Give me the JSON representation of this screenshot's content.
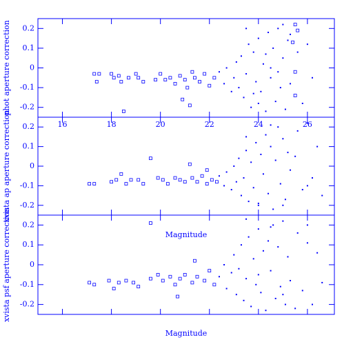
{
  "chart_data": [
    {
      "type": "scatter",
      "ylabel": "phot aperture correction",
      "xlim": [
        15,
        27.1
      ],
      "ylim": [
        -0.25,
        0.25
      ],
      "xticks": [
        16,
        18,
        20,
        22,
        24,
        26
      ],
      "yticks": [
        -0.2,
        -0.1,
        0,
        0.1,
        0.2
      ],
      "series": [
        {
          "color": "#0000ff",
          "marker": "open",
          "x": [
            17.3,
            17.5,
            17.4,
            18.0,
            18.1,
            18.3,
            18.4,
            18.7,
            18.5,
            19.1,
            19.3,
            19.0,
            19.8,
            20.0,
            20.2,
            20.4,
            20.6,
            20.8,
            21.0,
            21.1,
            21.2,
            21.4,
            21.6,
            21.8,
            22.0,
            22.2,
            20.9,
            21.3,
            25.5,
            25.6,
            25.4,
            25.5,
            25.5
          ],
          "y": [
            -0.03,
            -0.03,
            -0.07,
            -0.03,
            -0.05,
            -0.04,
            -0.07,
            -0.05,
            -0.22,
            -0.05,
            -0.07,
            -0.03,
            -0.06,
            -0.03,
            -0.06,
            -0.05,
            -0.08,
            -0.04,
            -0.06,
            -0.1,
            -0.19,
            -0.05,
            -0.07,
            -0.03,
            -0.09,
            -0.05,
            -0.16,
            -0.02,
            0.22,
            0.19,
            0.13,
            -0.02,
            -0.14
          ]
        },
        {
          "color": "#0000ff",
          "marker": "dot",
          "x": [
            22.4,
            22.6,
            22.7,
            22.9,
            23.0,
            23.1,
            23.2,
            23.3,
            23.4,
            23.5,
            23.6,
            23.7,
            23.8,
            23.9,
            24.0,
            24.1,
            24.2,
            24.3,
            24.4,
            24.5,
            24.6,
            24.7,
            24.8,
            24.9,
            25.0,
            25.1,
            25.2,
            25.3,
            25.6,
            25.8,
            26.0,
            26.2,
            23.5,
            24.0,
            24.5,
            25.0,
            23.8,
            24.3,
            24.8,
            25.3
          ],
          "y": [
            -0.02,
            -0.08,
            0.0,
            -0.12,
            -0.05,
            0.03,
            -0.1,
            0.06,
            -0.15,
            -0.03,
            0.12,
            -0.2,
            0.08,
            -0.07,
            0.15,
            -0.12,
            0.02,
            -0.22,
            0.18,
            -0.05,
            0.1,
            -0.17,
            0.2,
            -0.1,
            0.05,
            -0.21,
            0.14,
            -0.08,
            0.08,
            -0.18,
            0.12,
            -0.05,
            0.2,
            -0.18,
            0.0,
            0.22,
            -0.13,
            0.07,
            -0.02,
            0.17
          ]
        }
      ]
    },
    {
      "type": "scatter",
      "ylabel": "xvista ap aperture correction",
      "xlabel": "Magnitude",
      "xlim": [
        15,
        27.1
      ],
      "ylim": [
        -0.25,
        0.25
      ],
      "yticks": [
        -0.2,
        -0.1,
        0,
        0.1,
        0.2
      ],
      "series": [
        {
          "color": "#0000ff",
          "marker": "open",
          "x": [
            17.1,
            17.3,
            18.0,
            18.2,
            18.4,
            18.6,
            18.8,
            19.1,
            19.3,
            19.6,
            19.9,
            20.1,
            20.3,
            20.6,
            20.8,
            21.0,
            21.3,
            21.5,
            21.7,
            21.9,
            22.1,
            22.3,
            21.2,
            21.9
          ],
          "y": [
            -0.09,
            -0.09,
            -0.08,
            -0.07,
            -0.04,
            -0.09,
            -0.07,
            -0.07,
            -0.09,
            0.04,
            -0.06,
            -0.07,
            -0.09,
            -0.06,
            -0.07,
            -0.08,
            -0.06,
            -0.08,
            -0.05,
            -0.09,
            -0.07,
            -0.08,
            0.01,
            -0.02
          ]
        },
        {
          "color": "#0000ff",
          "marker": "dot",
          "x": [
            22.4,
            22.6,
            22.7,
            22.9,
            23.0,
            23.1,
            23.2,
            23.3,
            23.4,
            23.5,
            23.6,
            23.7,
            23.8,
            23.9,
            24.0,
            24.1,
            24.2,
            24.3,
            24.4,
            24.5,
            24.6,
            24.7,
            24.8,
            24.9,
            25.0,
            25.1,
            25.2,
            25.3,
            25.6,
            25.8,
            26.0,
            26.2,
            26.4,
            26.6,
            23.5,
            24.0,
            24.5,
            25.0,
            25.5,
            26.0
          ],
          "y": [
            -0.05,
            -0.1,
            -0.03,
            -0.12,
            0.0,
            -0.08,
            0.04,
            -0.15,
            -0.06,
            0.08,
            -0.18,
            0.02,
            -0.11,
            0.12,
            -0.2,
            0.06,
            -0.04,
            0.16,
            -0.14,
            0.1,
            -0.22,
            0.03,
            0.2,
            -0.09,
            0.14,
            -0.17,
            0.07,
            -0.02,
            0.18,
            -0.12,
            0.22,
            -0.06,
            0.1,
            -0.15,
            0.15,
            -0.19,
            0.21,
            -0.2,
            0.05,
            -0.1
          ]
        }
      ]
    },
    {
      "type": "scatter",
      "ylabel": "xvista psf aperture correction",
      "xlabel": "Magnitude",
      "xlim": [
        15,
        27.1
      ],
      "ylim": [
        -0.25,
        0.25
      ],
      "yticks": [
        -0.2,
        -0.1,
        0,
        0.1,
        0.2
      ],
      "series": [
        {
          "color": "#0000ff",
          "marker": "open",
          "x": [
            17.1,
            17.3,
            17.9,
            18.1,
            18.3,
            18.6,
            18.9,
            19.1,
            19.6,
            19.6,
            19.9,
            20.1,
            20.4,
            20.6,
            20.8,
            21.0,
            21.3,
            21.5,
            21.8,
            22.0,
            22.2,
            21.4,
            20.7
          ],
          "y": [
            -0.09,
            -0.1,
            -0.08,
            -0.12,
            -0.09,
            -0.08,
            -0.09,
            -0.11,
            0.21,
            -0.07,
            -0.05,
            -0.08,
            -0.06,
            -0.1,
            -0.07,
            -0.05,
            -0.09,
            -0.06,
            -0.08,
            -0.03,
            -0.1,
            0.02,
            -0.16
          ]
        },
        {
          "color": "#0000ff",
          "marker": "dot",
          "x": [
            22.4,
            22.6,
            22.7,
            22.9,
            23.0,
            23.1,
            23.2,
            23.3,
            23.4,
            23.5,
            23.6,
            23.7,
            23.8,
            23.9,
            24.0,
            24.1,
            24.2,
            24.3,
            24.4,
            24.5,
            24.6,
            24.7,
            24.8,
            24.9,
            25.0,
            25.1,
            25.2,
            25.3,
            25.6,
            25.8,
            26.0,
            26.2,
            26.4,
            26.6,
            23.5,
            24.0,
            24.5,
            25.0,
            25.5,
            26.0
          ],
          "y": [
            -0.06,
            0.0,
            -0.12,
            -0.04,
            0.05,
            -0.15,
            -0.02,
            0.1,
            -0.18,
            -0.07,
            0.14,
            -0.21,
            0.03,
            -0.1,
            0.18,
            -0.14,
            0.07,
            -0.23,
            0.12,
            -0.03,
            0.2,
            -0.17,
            0.09,
            -0.11,
            0.22,
            -0.2,
            0.04,
            -0.08,
            0.16,
            -0.13,
            0.11,
            -0.2,
            0.06,
            -0.09,
            0.23,
            -0.05,
            0.19,
            -0.15,
            -0.22,
            0.2
          ]
        }
      ]
    }
  ]
}
